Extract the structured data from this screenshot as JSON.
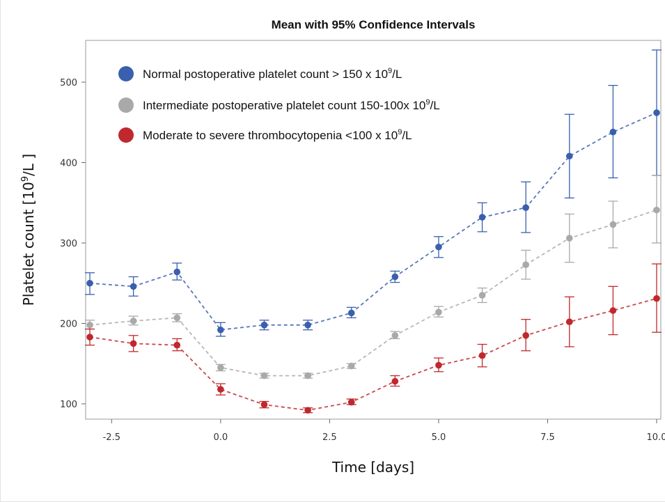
{
  "chart_data": {
    "type": "line",
    "title": "Mean with 95% Confidence Intervals",
    "xlabel": "Time [days]",
    "ylabel_main": "Platelet count [10",
    "ylabel_sup": "9",
    "ylabel_end": "/L ]",
    "xlim": [
      -3.0,
      10.0
    ],
    "ylim": [
      85,
      550
    ],
    "x_ticks": [
      -2.5,
      0.0,
      2.5,
      5.0,
      7.5,
      10.0
    ],
    "x_tick_labels": [
      "-2.5",
      "0.0",
      "2.5",
      "5.0",
      "7.5",
      "10.0"
    ],
    "y_ticks": [
      100,
      200,
      300,
      400,
      500
    ],
    "y_tick_labels": [
      "100",
      "200",
      "300",
      "400",
      "500"
    ],
    "grid": false,
    "legend_position": "top-left",
    "x": [
      -3,
      -2,
      -1,
      0,
      1,
      2,
      3,
      4,
      5,
      6,
      7,
      8,
      9,
      10
    ],
    "series": [
      {
        "name": "Normal postoperative platelet count > 150 x 10",
        "name_sup": "9",
        "name_end": "/L",
        "color": "#3a5fae",
        "values": [
          250,
          246,
          264,
          192,
          198,
          198,
          213,
          258,
          295,
          332,
          344,
          408,
          438,
          462
        ],
        "lower": [
          236,
          234,
          254,
          184,
          192,
          192,
          207,
          251,
          282,
          314,
          313,
          356,
          381,
          384
        ],
        "upper": [
          263,
          258,
          275,
          201,
          204,
          204,
          220,
          265,
          308,
          350,
          376,
          460,
          496,
          540
        ]
      },
      {
        "name": "Intermediate postoperative platelet count  150-100x 10",
        "name_sup": "9",
        "name_end": "/L",
        "color": "#a9a9a9",
        "values": [
          198,
          203,
          207,
          145,
          135,
          135,
          147,
          185,
          214,
          235,
          273,
          306,
          323,
          341
        ],
        "lower": [
          193,
          198,
          202,
          141,
          132,
          132,
          144,
          181,
          208,
          226,
          255,
          276,
          294,
          300
        ],
        "upper": [
          204,
          209,
          212,
          149,
          138,
          138,
          150,
          190,
          221,
          244,
          291,
          336,
          352,
          384
        ]
      },
      {
        "name": "Moderate to severe thrombocytopenia  <100 x 10",
        "name_sup": "9",
        "name_end": "/L",
        "color": "#c0282d",
        "values": [
          183,
          175,
          173,
          118,
          99,
          92,
          102,
          128,
          148,
          160,
          185,
          202,
          216,
          231
        ],
        "lower": [
          173,
          165,
          166,
          111,
          95,
          89,
          99,
          122,
          140,
          146,
          166,
          171,
          186,
          189
        ],
        "upper": [
          193,
          185,
          181,
          125,
          103,
          95,
          106,
          135,
          157,
          174,
          205,
          233,
          246,
          274
        ]
      }
    ]
  }
}
